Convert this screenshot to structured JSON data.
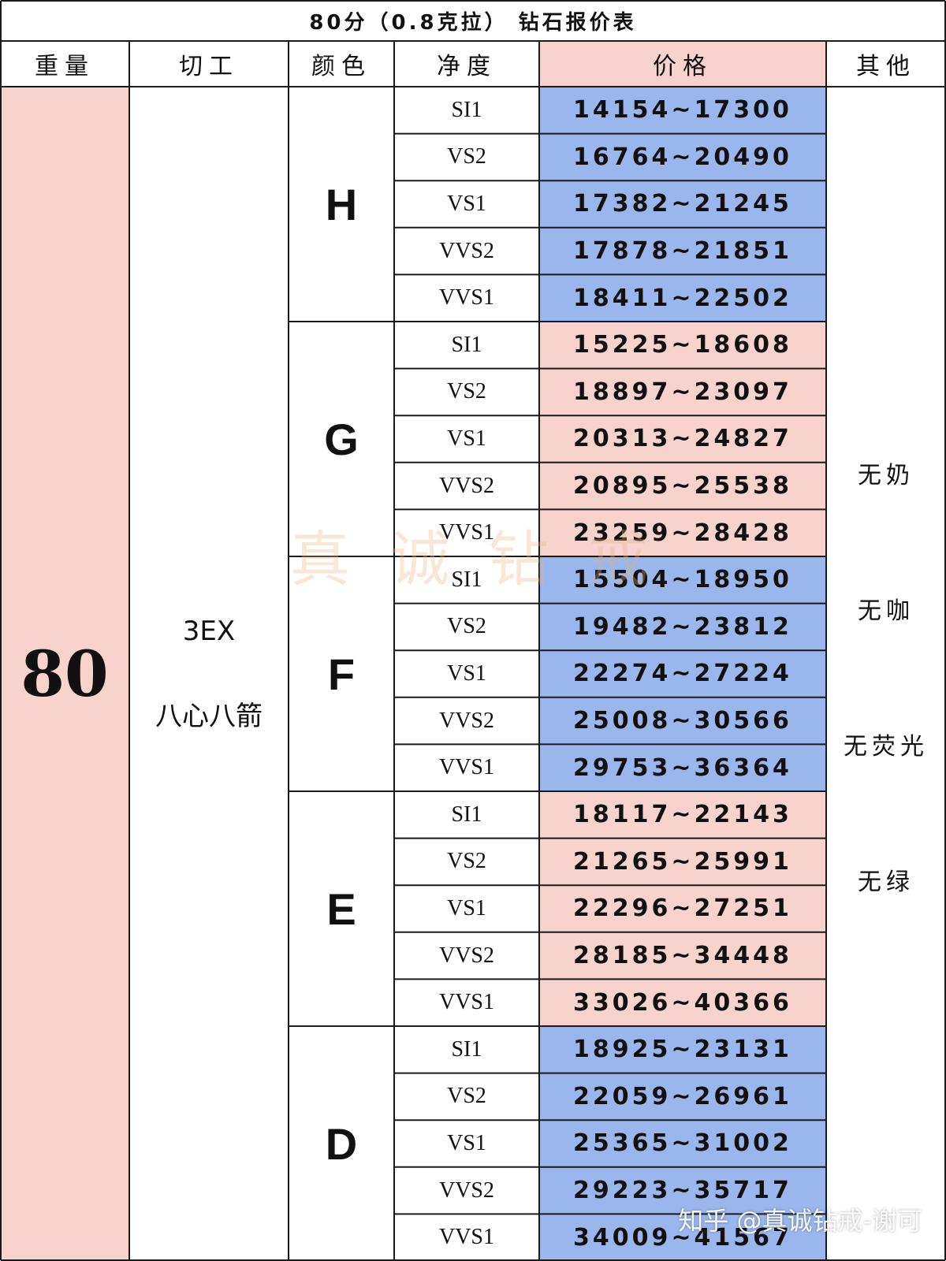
{
  "title": "80分（0.8克拉） 钻石报价表",
  "headers": {
    "weight": "重量",
    "cut": "切工",
    "color": "颜色",
    "clarity": "净度",
    "price": "价格",
    "other": "其他"
  },
  "weight": "80",
  "cut": {
    "grade": "3EX",
    "style": "八心八箭"
  },
  "colors": [
    {
      "grade": "H",
      "price_bg": "#99b7ec",
      "rows": [
        {
          "clarity": "SI1",
          "price": "14154~17300"
        },
        {
          "clarity": "VS2",
          "price": "16764~20490"
        },
        {
          "clarity": "VS1",
          "price": "17382~21245"
        },
        {
          "clarity": "VVS2",
          "price": "17878~21851"
        },
        {
          "clarity": "VVS1",
          "price": "18411~22502"
        }
      ]
    },
    {
      "grade": "G",
      "price_bg": "#f8d2cc",
      "rows": [
        {
          "clarity": "SI1",
          "price": "15225~18608"
        },
        {
          "clarity": "VS2",
          "price": "18897~23097"
        },
        {
          "clarity": "VS1",
          "price": "20313~24827"
        },
        {
          "clarity": "VVS2",
          "price": "20895~25538"
        },
        {
          "clarity": "VVS1",
          "price": "23259~28428"
        }
      ]
    },
    {
      "grade": "F",
      "price_bg": "#99b7ec",
      "rows": [
        {
          "clarity": "SI1",
          "price": "15504~18950"
        },
        {
          "clarity": "VS2",
          "price": "19482~23812"
        },
        {
          "clarity": "VS1",
          "price": "22274~27224"
        },
        {
          "clarity": "VVS2",
          "price": "25008~30566"
        },
        {
          "clarity": "VVS1",
          "price": "29753~36364"
        }
      ]
    },
    {
      "grade": "E",
      "price_bg": "#f8d2cc",
      "rows": [
        {
          "clarity": "SI1",
          "price": "18117~22143"
        },
        {
          "clarity": "VS2",
          "price": "21265~25991"
        },
        {
          "clarity": "VS1",
          "price": "22296~27251"
        },
        {
          "clarity": "VVS2",
          "price": "28185~34448"
        },
        {
          "clarity": "VVS1",
          "price": "33026~40366"
        }
      ]
    },
    {
      "grade": "D",
      "price_bg": "#99b7ec",
      "rows": [
        {
          "clarity": "SI1",
          "price": "18925~23131"
        },
        {
          "clarity": "VS2",
          "price": "22059~26961"
        },
        {
          "clarity": "VS1",
          "price": "25365~31002"
        },
        {
          "clarity": "VVS2",
          "price": "29223~35717"
        },
        {
          "clarity": "VVS1",
          "price": "34009~41567"
        }
      ]
    }
  ],
  "other": [
    "无奶",
    "无咖",
    "无荧光",
    "无绿"
  ],
  "watermark": "真诚钻戒",
  "credit": "知乎 @真诚钻戒-谢可",
  "theme": {
    "pink": "#f8d2cc",
    "blue": "#99b7ec",
    "border": "#1a1a1a"
  }
}
